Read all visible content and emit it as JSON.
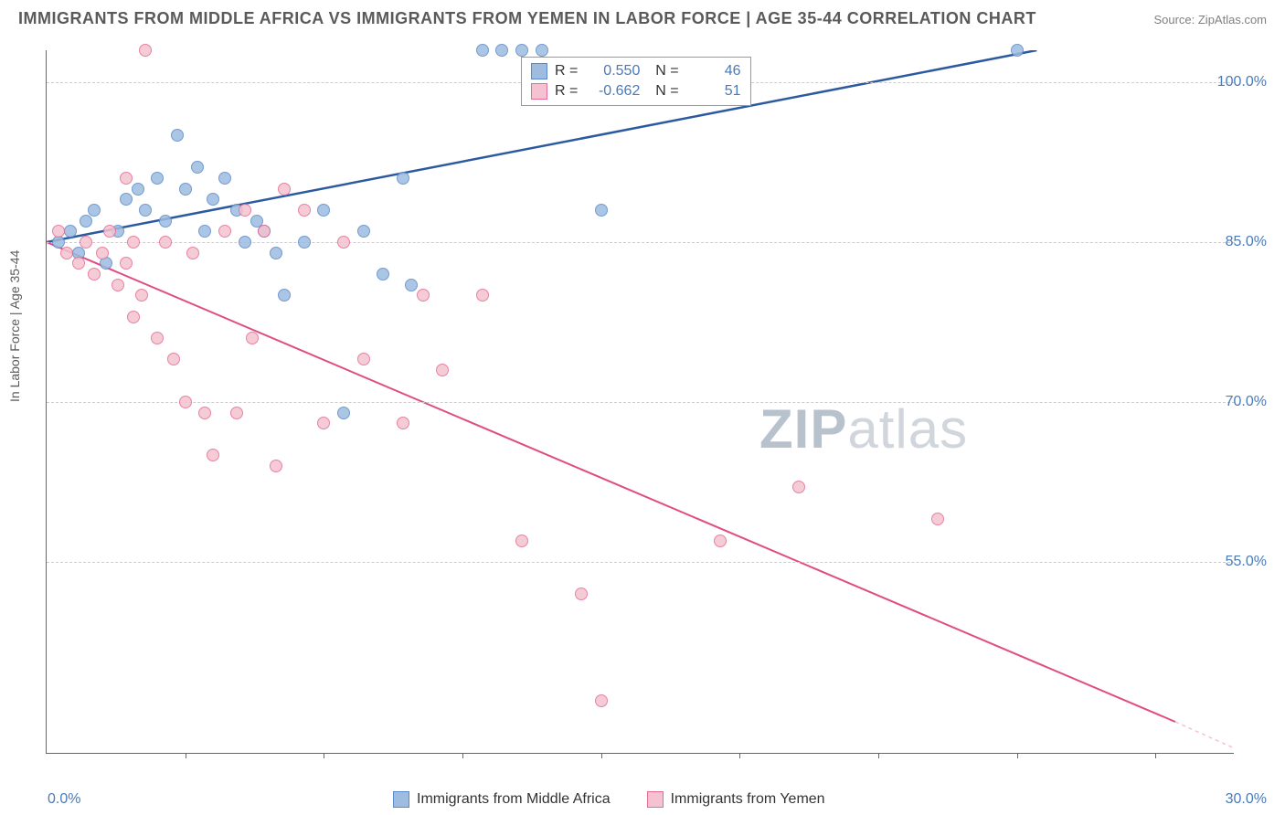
{
  "title": "IMMIGRANTS FROM MIDDLE AFRICA VS IMMIGRANTS FROM YEMEN IN LABOR FORCE | AGE 35-44 CORRELATION CHART",
  "source": "Source: ZipAtlas.com",
  "watermark_bold": "ZIP",
  "watermark_light": "atlas",
  "chart": {
    "type": "scatter",
    "xlim": [
      0,
      30
    ],
    "ylim": [
      37,
      103
    ],
    "x_ticks": [
      3.5,
      7.0,
      10.5,
      14.0,
      17.5,
      21.0,
      24.5,
      28.0
    ],
    "x_tick_labels": {
      "min": "0.0%",
      "max": "30.0%"
    },
    "y_ticks": [
      55.0,
      70.0,
      85.0,
      100.0
    ],
    "y_tick_labels": {
      "55.0": "55.0%",
      "70.0": "70.0%",
      "85.0": "85.0%",
      "100.0": "100.0%"
    },
    "y_axis_title": "In Labor Force | Age 35-44",
    "grid_color": "#cccccc",
    "background_color": "#ffffff",
    "series": [
      {
        "name": "Immigrants from Middle Africa",
        "color_fill": "#9dbce0",
        "color_stroke": "#5a8ac7",
        "R": "0.550",
        "N": "46",
        "trend": {
          "x1": 0,
          "y1": 85,
          "x2": 25,
          "y2": 103,
          "color": "#2c5aa0",
          "width": 2.5
        },
        "points": [
          [
            0.3,
            85
          ],
          [
            0.6,
            86
          ],
          [
            0.8,
            84
          ],
          [
            1.0,
            87
          ],
          [
            1.2,
            88
          ],
          [
            1.5,
            83
          ],
          [
            1.8,
            86
          ],
          [
            2.0,
            89
          ],
          [
            2.3,
            90
          ],
          [
            2.5,
            88
          ],
          [
            2.8,
            91
          ],
          [
            3.0,
            87
          ],
          [
            3.3,
            95
          ],
          [
            3.5,
            90
          ],
          [
            3.8,
            92
          ],
          [
            4.0,
            86
          ],
          [
            4.2,
            89
          ],
          [
            4.5,
            91
          ],
          [
            4.8,
            88
          ],
          [
            5.0,
            85
          ],
          [
            5.3,
            87
          ],
          [
            5.5,
            86
          ],
          [
            5.8,
            84
          ],
          [
            6.0,
            80
          ],
          [
            6.5,
            85
          ],
          [
            7.0,
            88
          ],
          [
            7.5,
            69
          ],
          [
            8.0,
            86
          ],
          [
            8.5,
            82
          ],
          [
            9.0,
            91
          ],
          [
            9.2,
            81
          ],
          [
            11.0,
            103
          ],
          [
            11.5,
            103
          ],
          [
            12.0,
            103
          ],
          [
            12.5,
            103
          ],
          [
            14.0,
            88
          ],
          [
            24.5,
            103
          ]
        ]
      },
      {
        "name": "Immigrants from Yemen",
        "color_fill": "#f4c2d0",
        "color_stroke": "#e66b95",
        "R": "-0.662",
        "N": "51",
        "trend": {
          "x1": 0,
          "y1": 85,
          "x2": 28.5,
          "y2": 40,
          "color": "#e04d82",
          "width": 2
        },
        "trend_dash": {
          "x1": 28.5,
          "y1": 40,
          "x2": 30,
          "y2": 37.5,
          "color": "#f4c2d0"
        },
        "points": [
          [
            0.3,
            86
          ],
          [
            0.5,
            84
          ],
          [
            0.8,
            83
          ],
          [
            1.0,
            85
          ],
          [
            1.2,
            82
          ],
          [
            1.4,
            84
          ],
          [
            1.6,
            86
          ],
          [
            1.8,
            81
          ],
          [
            2.0,
            83
          ],
          [
            2.2,
            85
          ],
          [
            2.4,
            80
          ],
          [
            2.0,
            91
          ],
          [
            2.2,
            78
          ],
          [
            2.5,
            103
          ],
          [
            2.8,
            76
          ],
          [
            3.0,
            85
          ],
          [
            3.2,
            74
          ],
          [
            3.5,
            70
          ],
          [
            3.7,
            84
          ],
          [
            4.0,
            69
          ],
          [
            4.2,
            65
          ],
          [
            4.5,
            86
          ],
          [
            4.8,
            69
          ],
          [
            5.0,
            88
          ],
          [
            5.2,
            76
          ],
          [
            5.5,
            86
          ],
          [
            5.8,
            64
          ],
          [
            6.0,
            90
          ],
          [
            6.5,
            88
          ],
          [
            7.0,
            68
          ],
          [
            7.5,
            85
          ],
          [
            8.0,
            74
          ],
          [
            9.0,
            68
          ],
          [
            9.5,
            80
          ],
          [
            10.0,
            73
          ],
          [
            11.0,
            80
          ],
          [
            12.0,
            57
          ],
          [
            13.5,
            52
          ],
          [
            14.0,
            42
          ],
          [
            17.0,
            57
          ],
          [
            19.0,
            62
          ],
          [
            22.5,
            59
          ]
        ]
      }
    ]
  }
}
